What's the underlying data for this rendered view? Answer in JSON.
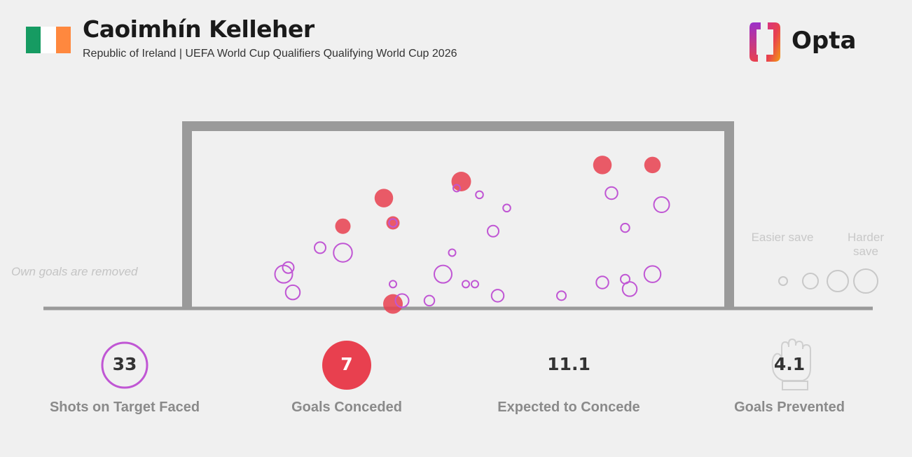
{
  "header": {
    "title": "Caoimhín Kelleher",
    "subtitle": "Republic of Ireland | UEFA World Cup Qualifiers Qualifying World Cup 2026",
    "flag_colors": [
      "#169b62",
      "#ffffff",
      "#ff883e"
    ],
    "logo_text": "Opta"
  },
  "note": "Own goals are removed",
  "legend": {
    "easier_label": "Easier save",
    "harder_label": "Harder save"
  },
  "colors": {
    "save": "#c056d4",
    "goal": "#e8404f",
    "frame": "#9a9a9a"
  },
  "stats": {
    "shots_value": "33",
    "shots_label": "Shots on Target Faced",
    "goals_value": "7",
    "goals_label": "Goals Conceded",
    "xg_value": "11.1",
    "xg_label": "Expected to Concede",
    "prevented_value": "4.1",
    "prevented_label": "Goals Prevented"
  },
  "chart_data": {
    "type": "scatter",
    "x_range": [
      0,
      1
    ],
    "y_range": [
      0,
      1
    ],
    "size_meaning": "difficulty of save",
    "series": [
      {
        "name": "Goals Conceded",
        "points": [
          {
            "x": 0.49,
            "y": 0.75,
            "size": 0.7
          },
          {
            "x": 0.8,
            "y": 0.85,
            "size": 0.65
          },
          {
            "x": 0.91,
            "y": 0.85,
            "size": 0.55
          },
          {
            "x": 0.32,
            "y": 0.65,
            "size": 0.65
          },
          {
            "x": 0.34,
            "y": 0.5,
            "size": 0.4
          },
          {
            "x": 0.23,
            "y": 0.48,
            "size": 0.5
          },
          {
            "x": 0.34,
            "y": 0.01,
            "size": 0.7
          }
        ]
      },
      {
        "name": "Saves",
        "points": [
          {
            "x": 0.48,
            "y": 0.71,
            "size": 0.1
          },
          {
            "x": 0.53,
            "y": 0.67,
            "size": 0.12
          },
          {
            "x": 0.59,
            "y": 0.59,
            "size": 0.12
          },
          {
            "x": 0.34,
            "y": 0.5,
            "size": 0.15
          },
          {
            "x": 0.82,
            "y": 0.68,
            "size": 0.35
          },
          {
            "x": 0.93,
            "y": 0.61,
            "size": 0.5
          },
          {
            "x": 0.56,
            "y": 0.45,
            "size": 0.3
          },
          {
            "x": 0.85,
            "y": 0.47,
            "size": 0.18
          },
          {
            "x": 0.18,
            "y": 0.35,
            "size": 0.3
          },
          {
            "x": 0.23,
            "y": 0.32,
            "size": 0.65
          },
          {
            "x": 0.47,
            "y": 0.32,
            "size": 0.1
          },
          {
            "x": 0.11,
            "y": 0.23,
            "size": 0.3
          },
          {
            "x": 0.1,
            "y": 0.19,
            "size": 0.6
          },
          {
            "x": 0.45,
            "y": 0.19,
            "size": 0.6
          },
          {
            "x": 0.91,
            "y": 0.19,
            "size": 0.55
          },
          {
            "x": 0.34,
            "y": 0.13,
            "size": 0.1
          },
          {
            "x": 0.5,
            "y": 0.13,
            "size": 0.1
          },
          {
            "x": 0.52,
            "y": 0.13,
            "size": 0.1
          },
          {
            "x": 0.8,
            "y": 0.14,
            "size": 0.35
          },
          {
            "x": 0.85,
            "y": 0.16,
            "size": 0.2
          },
          {
            "x": 0.86,
            "y": 0.1,
            "size": 0.45
          },
          {
            "x": 0.12,
            "y": 0.08,
            "size": 0.45
          },
          {
            "x": 0.57,
            "y": 0.06,
            "size": 0.35
          },
          {
            "x": 0.71,
            "y": 0.06,
            "size": 0.2
          },
          {
            "x": 0.36,
            "y": 0.03,
            "size": 0.4
          },
          {
            "x": 0.42,
            "y": 0.03,
            "size": 0.25
          }
        ]
      }
    ]
  }
}
